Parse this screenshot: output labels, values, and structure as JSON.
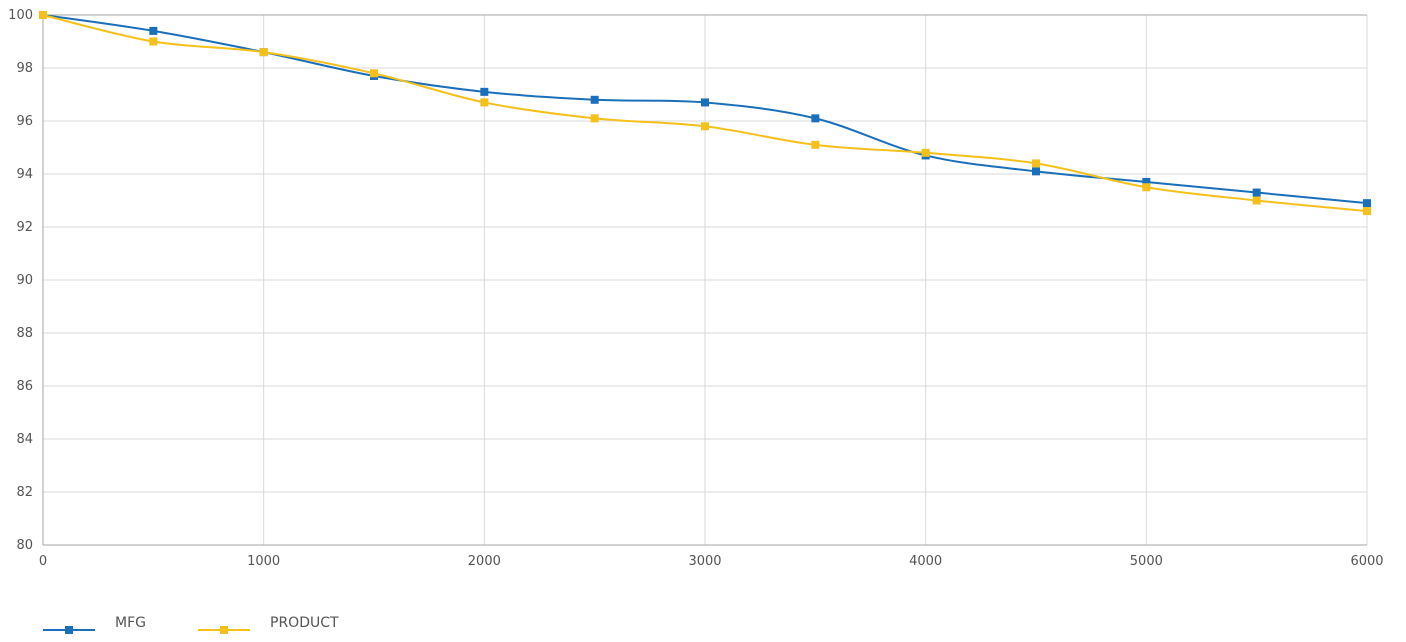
{
  "chart_data": {
    "type": "line",
    "title": "",
    "xlabel": "",
    "ylabel": "",
    "xlim": [
      0,
      6000
    ],
    "ylim": [
      80,
      100
    ],
    "xticks": [
      0,
      1000,
      2000,
      3000,
      4000,
      5000,
      6000
    ],
    "yticks": [
      80,
      82,
      84,
      86,
      88,
      90,
      92,
      94,
      96,
      98,
      100
    ],
    "grid": true,
    "legend_position": "bottom-left",
    "x": [
      0,
      500,
      1000,
      1500,
      2000,
      2500,
      3000,
      3500,
      4000,
      4500,
      5000,
      5500,
      6000
    ],
    "series": [
      {
        "name": "MFG",
        "color": "#1a6fba",
        "marker": "square",
        "values": [
          100,
          99.4,
          98.6,
          97.7,
          97.1,
          96.8,
          96.7,
          96.1,
          94.7,
          94.1,
          93.7,
          93.3,
          92.9
        ]
      },
      {
        "name": "PRODUCT",
        "color": "#f5c01a",
        "marker": "square",
        "values": [
          100,
          99.0,
          98.6,
          97.8,
          96.7,
          96.1,
          95.8,
          95.1,
          94.8,
          94.4,
          93.5,
          93.0,
          92.6
        ]
      }
    ]
  }
}
